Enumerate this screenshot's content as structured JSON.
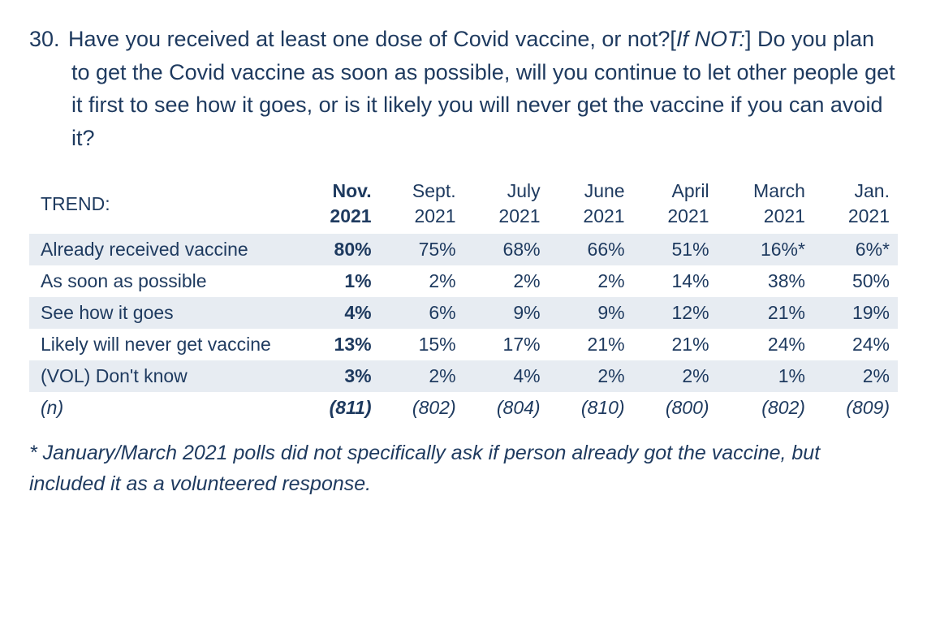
{
  "text_color": "#1e3a5f",
  "shade_color": "#e7ecf2",
  "background_color": "#ffffff",
  "question": {
    "number": "30.",
    "part1": "Have you received at least one dose of Covid vaccine, or not?[",
    "ital": "If NOT:",
    "part2": "] Do you plan to get the Covid vaccine as soon as possible, will you continue to let other people get it first to see how it goes, or is it likely you will never get the vaccine if you can avoid it?"
  },
  "table": {
    "trend_label": "TREND:",
    "header_fontsize": 23,
    "cell_fontsize": 23,
    "columns": [
      {
        "month": "Nov.",
        "year": "2021",
        "current": true
      },
      {
        "month": "Sept.",
        "year": "2021",
        "current": false
      },
      {
        "month": "July",
        "year": "2021",
        "current": false
      },
      {
        "month": "June",
        "year": "2021",
        "current": false
      },
      {
        "month": "April",
        "year": "2021",
        "current": false
      },
      {
        "month": "March",
        "year": "2021",
        "current": false
      },
      {
        "month": "Jan.",
        "year": "2021",
        "current": false
      }
    ],
    "rows": [
      {
        "label": "Already received vaccine",
        "values": [
          "80%",
          "75%",
          "68%",
          "66%",
          "51%",
          "16%*",
          "6%*"
        ],
        "shade": true
      },
      {
        "label": "As soon as possible",
        "values": [
          "1%",
          "2%",
          "2%",
          "2%",
          "14%",
          "38%",
          "50%"
        ],
        "shade": false
      },
      {
        "label": "See how it goes",
        "values": [
          "4%",
          "6%",
          "9%",
          "9%",
          "12%",
          "21%",
          "19%"
        ],
        "shade": true
      },
      {
        "label": "Likely will never get vaccine",
        "values": [
          "13%",
          "15%",
          "17%",
          "21%",
          "21%",
          "24%",
          "24%"
        ],
        "shade": false
      },
      {
        "label": "(VOL) Don't know",
        "values": [
          "3%",
          "2%",
          "4%",
          "2%",
          "2%",
          "1%",
          "2%"
        ],
        "shade": true
      }
    ],
    "n_row": {
      "label": "(n)",
      "values": [
        "(811)",
        "(802)",
        "(804)",
        "(810)",
        "(800)",
        "(802)",
        "(809)"
      ]
    }
  },
  "footnote": "* January/March 2021 polls did not specifically ask if person already got the vaccine, but included it as a volunteered response."
}
